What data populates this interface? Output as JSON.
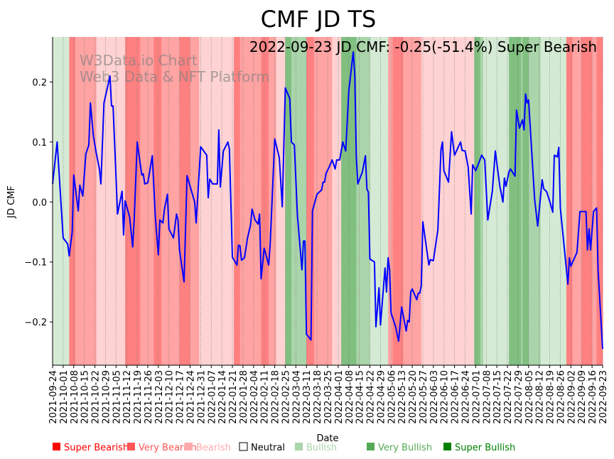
{
  "chart_data": {
    "type": "line",
    "title": "CMF JD TS",
    "annotation": "2022-09-23 JD CMF: -0.25(-51.4%) Super Bearish",
    "watermark": [
      "W3Data.io Chart",
      "Web3 Data & NFT Platform"
    ],
    "xlabel": "Date",
    "ylabel": "JD CMF",
    "start_date": "2021-09-24",
    "x_range_days": [
      0,
      364
    ],
    "ylim": [
      -0.272,
      0.275
    ],
    "y_ticks": [
      0.2,
      0.1,
      0.0,
      -0.1,
      -0.2
    ],
    "y_tick_labels": [
      "0.2",
      "0.1",
      "0.0",
      "−0.1",
      "−0.2"
    ],
    "x_tick_labels": [
      "2021-09-24",
      "2021-10-01",
      "2021-10-08",
      "2021-10-15",
      "2021-10-22",
      "2021-10-29",
      "2021-11-05",
      "2021-11-12",
      "2021-11-19",
      "2021-11-26",
      "2021-12-03",
      "2021-12-10",
      "2021-12-17",
      "2021-12-24",
      "2021-12-31",
      "2022-01-07",
      "2022-01-14",
      "2022-01-21",
      "2022-01-28",
      "2022-02-04",
      "2022-02-11",
      "2022-02-18",
      "2022-02-25",
      "2022-03-04",
      "2022-03-11",
      "2022-03-18",
      "2022-03-25",
      "2022-04-01",
      "2022-04-08",
      "2022-04-15",
      "2022-04-22",
      "2022-04-29",
      "2022-05-06",
      "2022-05-13",
      "2022-05-20",
      "2022-05-27",
      "2022-06-03",
      "2022-06-10",
      "2022-06-17",
      "2022-06-24",
      "2022-07-01",
      "2022-07-08",
      "2022-07-15",
      "2022-07-22",
      "2022-07-29",
      "2022-08-05",
      "2022-08-12",
      "2022-08-19",
      "2022-08-26",
      "2022-09-02",
      "2022-09-09",
      "2022-09-16",
      "2022-09-23"
    ],
    "grid": "x-dotted",
    "line_color": "#0000ff",
    "series": [
      {
        "name": "JD CMF",
        "points": [
          [
            0,
            0.03
          ],
          [
            3,
            0.1
          ],
          [
            7,
            -0.06
          ],
          [
            10,
            -0.07
          ],
          [
            11,
            -0.09
          ],
          [
            13,
            -0.05
          ],
          [
            14,
            0.045
          ],
          [
            17,
            -0.015
          ],
          [
            18,
            0.028
          ],
          [
            20,
            0.01
          ],
          [
            22,
            0.08
          ],
          [
            24,
            0.095
          ],
          [
            25,
            0.165
          ],
          [
            27,
            0.11
          ],
          [
            29,
            0.08
          ],
          [
            31,
            0.055
          ],
          [
            32,
            0.03
          ],
          [
            34,
            0.165
          ],
          [
            38,
            0.21
          ],
          [
            39,
            0.16
          ],
          [
            40,
            0.16
          ],
          [
            43,
            -0.02
          ],
          [
            46,
            0.018
          ],
          [
            47,
            -0.055
          ],
          [
            48,
            0.002
          ],
          [
            51,
            -0.025
          ],
          [
            53,
            -0.075
          ],
          [
            54,
            -0.03
          ],
          [
            56,
            0.1
          ],
          [
            59,
            0.045
          ],
          [
            60,
            0.047
          ],
          [
            61,
            0.03
          ],
          [
            63,
            0.032
          ],
          [
            66,
            0.077
          ],
          [
            68,
            -0.025
          ],
          [
            70,
            -0.088
          ],
          [
            71,
            -0.03
          ],
          [
            73,
            -0.035
          ],
          [
            74,
            -0.012
          ],
          [
            76,
            0.013
          ],
          [
            77,
            -0.045
          ],
          [
            80,
            -0.06
          ],
          [
            82,
            -0.02
          ],
          [
            83,
            -0.03
          ],
          [
            84,
            -0.08
          ],
          [
            87,
            -0.133
          ],
          [
            89,
            0.044
          ],
          [
            94,
            0.0
          ],
          [
            95,
            -0.035
          ],
          [
            98,
            0.092
          ],
          [
            102,
            0.078
          ],
          [
            103,
            0.007
          ],
          [
            104,
            0.038
          ],
          [
            106,
            0.03
          ],
          [
            109,
            0.03
          ],
          [
            110,
            0.12
          ],
          [
            111,
            0.025
          ],
          [
            113,
            0.085
          ],
          [
            116,
            0.1
          ],
          [
            117,
            0.088
          ],
          [
            119,
            -0.092
          ],
          [
            122,
            -0.105
          ],
          [
            123,
            -0.072
          ],
          [
            124,
            -0.073
          ],
          [
            125,
            -0.097
          ],
          [
            127,
            -0.093
          ],
          [
            129,
            -0.06
          ],
          [
            131,
            -0.038
          ],
          [
            132,
            -0.012
          ],
          [
            134,
            -0.03
          ],
          [
            136,
            -0.037
          ],
          [
            137,
            -0.02
          ],
          [
            138,
            -0.128
          ],
          [
            140,
            -0.077
          ],
          [
            143,
            -0.105
          ],
          [
            144,
            -0.07
          ],
          [
            147,
            0.105
          ],
          [
            150,
            0.074
          ],
          [
            152,
            -0.008
          ],
          [
            154,
            0.19
          ],
          [
            157,
            0.172
          ],
          [
            158,
            0.1
          ],
          [
            160,
            0.095
          ],
          [
            162,
            -0.022
          ],
          [
            165,
            -0.113
          ],
          [
            166,
            -0.065
          ],
          [
            167,
            -0.065
          ],
          [
            168,
            -0.22
          ],
          [
            171,
            -0.23
          ],
          [
            172,
            -0.015
          ],
          [
            175,
            0.013
          ],
          [
            178,
            0.02
          ],
          [
            179,
            0.033
          ],
          [
            180,
            0.033
          ],
          [
            181,
            0.048
          ],
          [
            183,
            0.058
          ],
          [
            185,
            0.07
          ],
          [
            187,
            0.055
          ],
          [
            188,
            0.07
          ],
          [
            190,
            0.07
          ],
          [
            192,
            0.1
          ],
          [
            194,
            0.085
          ],
          [
            196,
            0.185
          ],
          [
            199,
            0.25
          ],
          [
            200,
            0.21
          ],
          [
            201,
            0.076
          ],
          [
            202,
            0.03
          ],
          [
            205,
            0.05
          ],
          [
            207,
            0.077
          ],
          [
            208,
            0.022
          ],
          [
            209,
            0.016
          ],
          [
            210,
            -0.095
          ],
          [
            213,
            -0.1
          ],
          [
            214,
            -0.208
          ],
          [
            216,
            -0.143
          ],
          [
            217,
            -0.205
          ],
          [
            220,
            -0.11
          ],
          [
            221,
            -0.15
          ],
          [
            222,
            -0.093
          ],
          [
            223,
            -0.113
          ],
          [
            224,
            -0.185
          ],
          [
            227,
            -0.208
          ],
          [
            229,
            -0.232
          ],
          [
            231,
            -0.175
          ],
          [
            234,
            -0.215
          ],
          [
            235,
            -0.197
          ],
          [
            236,
            -0.2
          ],
          [
            237,
            -0.15
          ],
          [
            238,
            -0.145
          ],
          [
            241,
            -0.163
          ],
          [
            242,
            -0.152
          ],
          [
            243,
            -0.152
          ],
          [
            244,
            -0.14
          ],
          [
            245,
            -0.033
          ],
          [
            249,
            -0.105
          ],
          [
            250,
            -0.096
          ],
          [
            252,
            -0.098
          ],
          [
            255,
            -0.046
          ],
          [
            257,
            0.087
          ],
          [
            258,
            0.1
          ],
          [
            259,
            0.052
          ],
          [
            262,
            0.033
          ],
          [
            264,
            0.117
          ],
          [
            266,
            0.078
          ],
          [
            270,
            0.1
          ],
          [
            271,
            0.086
          ],
          [
            273,
            0.085
          ],
          [
            275,
            0.058
          ],
          [
            277,
            -0.02
          ],
          [
            278,
            0.062
          ],
          [
            280,
            0.052
          ],
          [
            284,
            0.078
          ],
          [
            286,
            0.07
          ],
          [
            288,
            -0.03
          ],
          [
            291,
            0.018
          ],
          [
            293,
            0.085
          ],
          [
            294,
            0.064
          ],
          [
            296,
            0.026
          ],
          [
            298,
            0.0
          ],
          [
            299,
            0.04
          ],
          [
            300,
            0.026
          ],
          [
            302,
            0.05
          ],
          [
            303,
            0.055
          ],
          [
            306,
            0.043
          ],
          [
            307,
            0.153
          ],
          [
            309,
            0.123
          ],
          [
            311,
            0.137
          ],
          [
            312,
            0.12
          ],
          [
            313,
            0.18
          ],
          [
            314,
            0.165
          ],
          [
            315,
            0.17
          ],
          [
            319,
            0.005
          ],
          [
            321,
            -0.04
          ],
          [
            324,
            0.037
          ],
          [
            325,
            0.022
          ],
          [
            327,
            0.017
          ],
          [
            329,
            0.001
          ],
          [
            331,
            -0.017
          ],
          [
            332,
            0.078
          ],
          [
            334,
            0.075
          ],
          [
            335,
            0.091
          ],
          [
            336,
            -0.01
          ],
          [
            341,
            -0.137
          ],
          [
            342,
            -0.093
          ],
          [
            343,
            -0.107
          ],
          [
            347,
            -0.084
          ],
          [
            349,
            -0.016
          ],
          [
            350,
            -0.016
          ],
          [
            353,
            -0.016
          ],
          [
            354,
            -0.08
          ],
          [
            355,
            -0.045
          ],
          [
            356,
            -0.08
          ],
          [
            358,
            -0.016
          ],
          [
            360,
            -0.01
          ],
          [
            361,
            -0.114
          ],
          [
            364,
            -0.245
          ]
        ]
      }
    ],
    "band_categories": [
      "Super Bearish",
      "Very Bearish",
      "Bearish",
      "Neutral",
      "Bullish",
      "Very Bullish",
      "Super Bullish"
    ],
    "band_colors": [
      "#ff8080",
      "#ffa3a3",
      "#ffd3d3",
      "#ffffff",
      "#d4ead4",
      "#aad4aa",
      "#80bf80"
    ],
    "bands": [
      [
        0,
        11,
        4
      ],
      [
        11,
        15,
        0
      ],
      [
        15,
        29,
        1
      ],
      [
        29,
        48,
        2
      ],
      [
        48,
        58,
        0
      ],
      [
        58,
        67,
        1
      ],
      [
        67,
        72,
        0
      ],
      [
        72,
        84,
        1
      ],
      [
        84,
        91,
        0
      ],
      [
        91,
        97,
        1
      ],
      [
        97,
        120,
        2
      ],
      [
        120,
        124,
        0
      ],
      [
        124,
        127,
        1
      ],
      [
        127,
        138,
        1
      ],
      [
        138,
        143,
        0
      ],
      [
        143,
        148,
        1
      ],
      [
        148,
        154,
        2
      ],
      [
        154,
        158,
        6
      ],
      [
        158,
        168,
        5
      ],
      [
        168,
        173,
        0
      ],
      [
        173,
        185,
        1
      ],
      [
        185,
        191,
        2
      ],
      [
        191,
        201,
        6
      ],
      [
        201,
        210,
        5
      ],
      [
        210,
        222,
        4
      ],
      [
        222,
        225,
        1
      ],
      [
        225,
        232,
        0
      ],
      [
        232,
        244,
        1
      ],
      [
        244,
        279,
        2
      ],
      [
        279,
        283,
        6
      ],
      [
        283,
        285,
        5
      ],
      [
        285,
        302,
        4
      ],
      [
        302,
        310,
        6
      ],
      [
        310,
        311,
        5
      ],
      [
        311,
        315,
        6
      ],
      [
        315,
        323,
        5
      ],
      [
        323,
        340,
        4
      ],
      [
        340,
        344,
        0
      ],
      [
        344,
        350,
        1
      ],
      [
        350,
        357,
        0
      ],
      [
        357,
        360,
        1
      ],
      [
        360,
        364,
        0
      ]
    ],
    "legend": {
      "placement": "bottom",
      "items": [
        {
          "label": "Super Bearish",
          "color": "#ff0000",
          "text_color": "#ff0000"
        },
        {
          "label": "Very Bearish",
          "color": "#ff5555",
          "text_color": "#ff5555"
        },
        {
          "label": "Bearish",
          "color": "#ffaaaa",
          "text_color": "#ffaaaa"
        },
        {
          "label": "Neutral",
          "color": "#ffffff",
          "text_color": "#000000"
        },
        {
          "label": "Bullish",
          "color": "#aad4aa",
          "text_color": "#aad4aa"
        },
        {
          "label": "Very Bullish",
          "color": "#55aa55",
          "text_color": "#55aa55"
        },
        {
          "label": "Super Bullish",
          "color": "#008000",
          "text_color": "#008000"
        }
      ]
    }
  }
}
